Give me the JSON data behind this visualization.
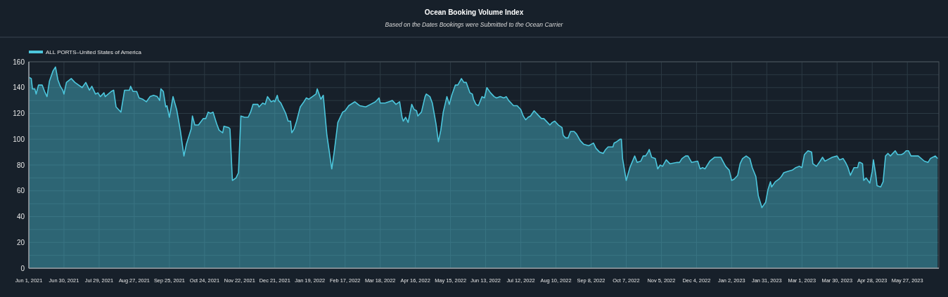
{
  "chart_data": {
    "type": "area",
    "title": "Ocean Booking Volume Index",
    "subtitle": "Based on the Dates Bookings were Submitted to the Ocean Carrier",
    "x": [
      "2021-06-01",
      "2021-06-03",
      "2021-06-04",
      "2021-06-06",
      "2021-06-07",
      "2021-06-09",
      "2021-06-12",
      "2021-06-14",
      "2021-06-16",
      "2021-06-18",
      "2021-06-21",
      "2021-06-23",
      "2021-06-25",
      "2021-06-27",
      "2021-06-29",
      "2021-06-30",
      "2021-07-02",
      "2021-07-06",
      "2021-07-09",
      "2021-07-15",
      "2021-07-18",
      "2021-07-21",
      "2021-07-23",
      "2021-07-26",
      "2021-07-28",
      "2021-07-30",
      "2021-08-02",
      "2021-08-03",
      "2021-08-08",
      "2021-08-10",
      "2021-08-12",
      "2021-08-14",
      "2021-08-16",
      "2021-08-19",
      "2021-08-23",
      "2021-08-24",
      "2021-08-26",
      "2021-08-29",
      "2021-08-31",
      "2021-09-03",
      "2021-09-06",
      "2021-09-09",
      "2021-09-12",
      "2021-09-15",
      "2021-09-17",
      "2021-09-18",
      "2021-09-20",
      "2021-09-22",
      "2021-09-23",
      "2021-09-25",
      "2021-09-28",
      "2021-10-01",
      "2021-10-04",
      "2021-10-07",
      "2021-10-09",
      "2021-10-13",
      "2021-10-14",
      "2021-10-16",
      "2021-10-19",
      "2021-10-23",
      "2021-10-25",
      "2021-10-27",
      "2021-10-29",
      "2021-10-31",
      "2021-11-03",
      "2021-11-05",
      "2021-11-08",
      "2021-11-09",
      "2021-11-13",
      "2021-11-14",
      "2021-11-16",
      "2021-11-19",
      "2021-11-21",
      "2021-11-23",
      "2021-11-26",
      "2021-11-29",
      "2021-12-01",
      "2021-12-03",
      "2021-12-07",
      "2021-12-08",
      "2021-12-11",
      "2021-12-13",
      "2021-12-15",
      "2021-12-18",
      "2021-12-20",
      "2021-12-21",
      "2021-12-23",
      "2021-12-24",
      "2021-12-26",
      "2021-12-30",
      "2022-01-01",
      "2022-01-03",
      "2022-01-04",
      "2022-01-06",
      "2022-01-08",
      "2022-01-11",
      "2022-01-14",
      "2022-01-16",
      "2022-01-18",
      "2022-01-21",
      "2022-01-24",
      "2022-01-25",
      "2022-01-28",
      "2022-01-30",
      "2022-02-02",
      "2022-02-06",
      "2022-02-08",
      "2022-02-11",
      "2022-02-15",
      "2022-02-17",
      "2022-02-20",
      "2022-02-25",
      "2022-03-01",
      "2022-03-06",
      "2022-03-10",
      "2022-03-14",
      "2022-03-17",
      "2022-03-18",
      "2022-03-22",
      "2022-03-25",
      "2022-03-28",
      "2022-03-31",
      "2022-04-03",
      "2022-04-05",
      "2022-04-06",
      "2022-04-08",
      "2022-04-10",
      "2022-04-13",
      "2022-04-15",
      "2022-04-17",
      "2022-04-18",
      "2022-04-21",
      "2022-04-24",
      "2022-04-25",
      "2022-04-28",
      "2022-04-30",
      "2022-05-03",
      "2022-05-05",
      "2022-05-07",
      "2022-05-09",
      "2022-05-12",
      "2022-05-14",
      "2022-05-16",
      "2022-05-19",
      "2022-05-21",
      "2022-05-24",
      "2022-05-26",
      "2022-05-28",
      "2022-05-31",
      "2022-06-02",
      "2022-06-03",
      "2022-06-05",
      "2022-06-07",
      "2022-06-10",
      "2022-06-12",
      "2022-06-14",
      "2022-06-17",
      "2022-06-20",
      "2022-06-22",
      "2022-06-25",
      "2022-06-28",
      "2022-06-30",
      "2022-07-02",
      "2022-07-04",
      "2022-07-06",
      "2022-07-09",
      "2022-07-12",
      "2022-07-14",
      "2022-07-16",
      "2022-07-18",
      "2022-07-20",
      "2022-07-23",
      "2022-07-26",
      "2022-07-29",
      "2022-07-31",
      "2022-08-03",
      "2022-08-05",
      "2022-08-07",
      "2022-08-09",
      "2022-08-12",
      "2022-08-15",
      "2022-08-16",
      "2022-08-18",
      "2022-08-20",
      "2022-08-22",
      "2022-08-25",
      "2022-08-27",
      "2022-08-30",
      "2022-09-02",
      "2022-09-06",
      "2022-09-08",
      "2022-09-10",
      "2022-09-12",
      "2022-09-15",
      "2022-09-18",
      "2022-09-20",
      "2022-09-22",
      "2022-09-26",
      "2022-09-27",
      "2022-09-29",
      "2022-10-02",
      "2022-10-03",
      "2022-10-04",
      "2022-10-07",
      "2022-10-10",
      "2022-10-14",
      "2022-10-16",
      "2022-10-19",
      "2022-10-21",
      "2022-10-23",
      "2022-10-25",
      "2022-10-26",
      "2022-10-28",
      "2022-10-31",
      "2022-11-02",
      "2022-11-04",
      "2022-11-06",
      "2022-11-09",
      "2022-11-12",
      "2022-11-18",
      "2022-11-20",
      "2022-11-22",
      "2022-11-25",
      "2022-11-27",
      "2022-11-30",
      "2022-12-05",
      "2022-12-07",
      "2022-12-09",
      "2022-12-11",
      "2022-12-15",
      "2022-12-19",
      "2022-12-24",
      "2022-12-28",
      "2022-12-31",
      "2023-01-02",
      "2023-01-04",
      "2023-01-07",
      "2023-01-09",
      "2023-01-11",
      "2023-01-14",
      "2023-01-17",
      "2023-01-19",
      "2023-01-22",
      "2023-01-24",
      "2023-01-27",
      "2023-01-30",
      "2023-02-01",
      "2023-02-03",
      "2023-02-04",
      "2023-02-07",
      "2023-02-10",
      "2023-02-12",
      "2023-02-14",
      "2023-02-17",
      "2023-02-21",
      "2023-02-24",
      "2023-02-27",
      "2023-03-01",
      "2023-03-03",
      "2023-03-06",
      "2023-03-09",
      "2023-03-10",
      "2023-03-13",
      "2023-03-16",
      "2023-03-18",
      "2023-03-20",
      "2023-03-22",
      "2023-03-26",
      "2023-03-30",
      "2023-04-01",
      "2023-04-04",
      "2023-04-06",
      "2023-04-08",
      "2023-04-10",
      "2023-04-13",
      "2023-04-16",
      "2023-04-17",
      "2023-04-18",
      "2023-04-20",
      "2023-04-21",
      "2023-04-23",
      "2023-04-26",
      "2023-04-28",
      "2023-04-29",
      "2023-05-01",
      "2023-05-02",
      "2023-05-05",
      "2023-05-07",
      "2023-05-09",
      "2023-05-11",
      "2023-05-13",
      "2023-05-16",
      "2023-05-17",
      "2023-05-19",
      "2023-05-22",
      "2023-05-24",
      "2023-05-26",
      "2023-05-28",
      "2023-05-30",
      "2023-06-05",
      "2023-06-10",
      "2023-06-13",
      "2023-06-15",
      "2023-06-19",
      "2023-06-21"
    ],
    "series": [
      {
        "name": "ALL PORTS–United States of America",
        "color": "#4cc6dc",
        "values": [
          148,
          147,
          139,
          139,
          135,
          142,
          142,
          137,
          133,
          145,
          153,
          156,
          146,
          141,
          138,
          135,
          144,
          147,
          144,
          140,
          144,
          138,
          141,
          135,
          136,
          133,
          136,
          133,
          137,
          138,
          125,
          123,
          121,
          138,
          138,
          141,
          137,
          137,
          132,
          131,
          129,
          133,
          134,
          133,
          130,
          139,
          137,
          125,
          126,
          117,
          133,
          123,
          107,
          87,
          96,
          108,
          118,
          111,
          111,
          116,
          116,
          121,
          120,
          121,
          112,
          107,
          105,
          110,
          109,
          108,
          68,
          70,
          74,
          118,
          117,
          117,
          121,
          127,
          127,
          125,
          128,
          127,
          133,
          129,
          130,
          129,
          134,
          130,
          128,
          120,
          114,
          114,
          105,
          108,
          114,
          125,
          129,
          132,
          131,
          133,
          135,
          139,
          131,
          134,
          103,
          77,
          90,
          113,
          121,
          122,
          126,
          129,
          126,
          125,
          127,
          129,
          132,
          128,
          128,
          129,
          130,
          127,
          129,
          117,
          114,
          117,
          113,
          127,
          123,
          122,
          118,
          121,
          133,
          135,
          133,
          128,
          112,
          98,
          107,
          121,
          133,
          127,
          134,
          142,
          142,
          147,
          144,
          144,
          136,
          135,
          131,
          127,
          126,
          133,
          132,
          140,
          136,
          133,
          132,
          133,
          132,
          133,
          130,
          128,
          126,
          126,
          123,
          118,
          115,
          117,
          118,
          122,
          119,
          116,
          116,
          113,
          111,
          113,
          114,
          111,
          109,
          103,
          101,
          101,
          106,
          106,
          104,
          99,
          96,
          95,
          96,
          97,
          93,
          90,
          89,
          92,
          94,
          94,
          97,
          98,
          100,
          100,
          85,
          68,
          78,
          87,
          82,
          83,
          87,
          87,
          90,
          92,
          86,
          85,
          77,
          80,
          79,
          84,
          81,
          82,
          82,
          85,
          87,
          87,
          82,
          83,
          77,
          78,
          77,
          83,
          86,
          86,
          79,
          76,
          68,
          69,
          72,
          81,
          85,
          87,
          85,
          78,
          71,
          56,
          47,
          51,
          61,
          67,
          63,
          67,
          69,
          71,
          74,
          75,
          76,
          78,
          79,
          78,
          88,
          91,
          90,
          81,
          79,
          83,
          86,
          83,
          84,
          86,
          87,
          84,
          85,
          82,
          78,
          72,
          78,
          78,
          82,
          82,
          81,
          68,
          70,
          66,
          75,
          84,
          72,
          64,
          63,
          67,
          87,
          89,
          87,
          90,
          91,
          88,
          88,
          89,
          91,
          91,
          87,
          87,
          83,
          82,
          85,
          87,
          85
        ]
      }
    ],
    "xlim": [
      "2021-06-01",
      "2023-06-22"
    ],
    "xticks": [
      {
        "value": "2021-06-01",
        "label": "Jun 1, 2021"
      },
      {
        "value": "2021-06-30",
        "label": "Jun 30, 2021"
      },
      {
        "value": "2021-07-29",
        "label": "Jul 29, 2021"
      },
      {
        "value": "2021-08-27",
        "label": "Aug 27, 2021"
      },
      {
        "value": "2021-09-25",
        "label": "Sep 25, 2021"
      },
      {
        "value": "2021-10-24",
        "label": "Oct 24, 2021"
      },
      {
        "value": "2021-11-22",
        "label": "Nov 22, 2021"
      },
      {
        "value": "2021-12-21",
        "label": "Dec 21, 2021"
      },
      {
        "value": "2022-01-19",
        "label": "Jan 19, 2022"
      },
      {
        "value": "2022-02-17",
        "label": "Feb 17, 2022"
      },
      {
        "value": "2022-03-18",
        "label": "Mar 18, 2022"
      },
      {
        "value": "2022-04-16",
        "label": "Apr 16, 2022"
      },
      {
        "value": "2022-05-15",
        "label": "May 15, 2022"
      },
      {
        "value": "2022-06-13",
        "label": "Jun 13, 2022"
      },
      {
        "value": "2022-07-12",
        "label": "Jul 12, 2022"
      },
      {
        "value": "2022-08-10",
        "label": "Aug 10, 2022"
      },
      {
        "value": "2022-09-08",
        "label": "Sep 8, 2022"
      },
      {
        "value": "2022-10-07",
        "label": "Oct 7, 2022"
      },
      {
        "value": "2022-11-05",
        "label": "Nov 5, 2022"
      },
      {
        "value": "2022-12-04",
        "label": "Dec 4, 2022"
      },
      {
        "value": "2023-01-02",
        "label": "Jan 2, 2023"
      },
      {
        "value": "2023-01-31",
        "label": "Jan 31, 2023"
      },
      {
        "value": "2023-03-01",
        "label": "Mar 1, 2023"
      },
      {
        "value": "2023-03-30",
        "label": "Mar 30, 2023"
      },
      {
        "value": "2023-04-28",
        "label": "Apr 28, 2023"
      },
      {
        "value": "2023-05-27",
        "label": "May 27, 2023"
      }
    ],
    "ylim": [
      0,
      160
    ],
    "yticks": [
      0,
      {
        "value": 10,
        "label": null
      },
      20,
      {
        "value": 30,
        "label": null
      },
      40,
      {
        "value": 50,
        "label": null
      },
      60,
      {
        "value": 70,
        "label": null
      },
      80,
      {
        "value": 90,
        "label": null
      },
      100,
      {
        "value": 110,
        "label": null
      },
      120,
      {
        "value": 130,
        "label": null
      },
      140,
      {
        "value": 150,
        "label": null
      },
      160
    ],
    "grid": true,
    "legend": "top left",
    "marker": "none",
    "line_style": "solid"
  }
}
